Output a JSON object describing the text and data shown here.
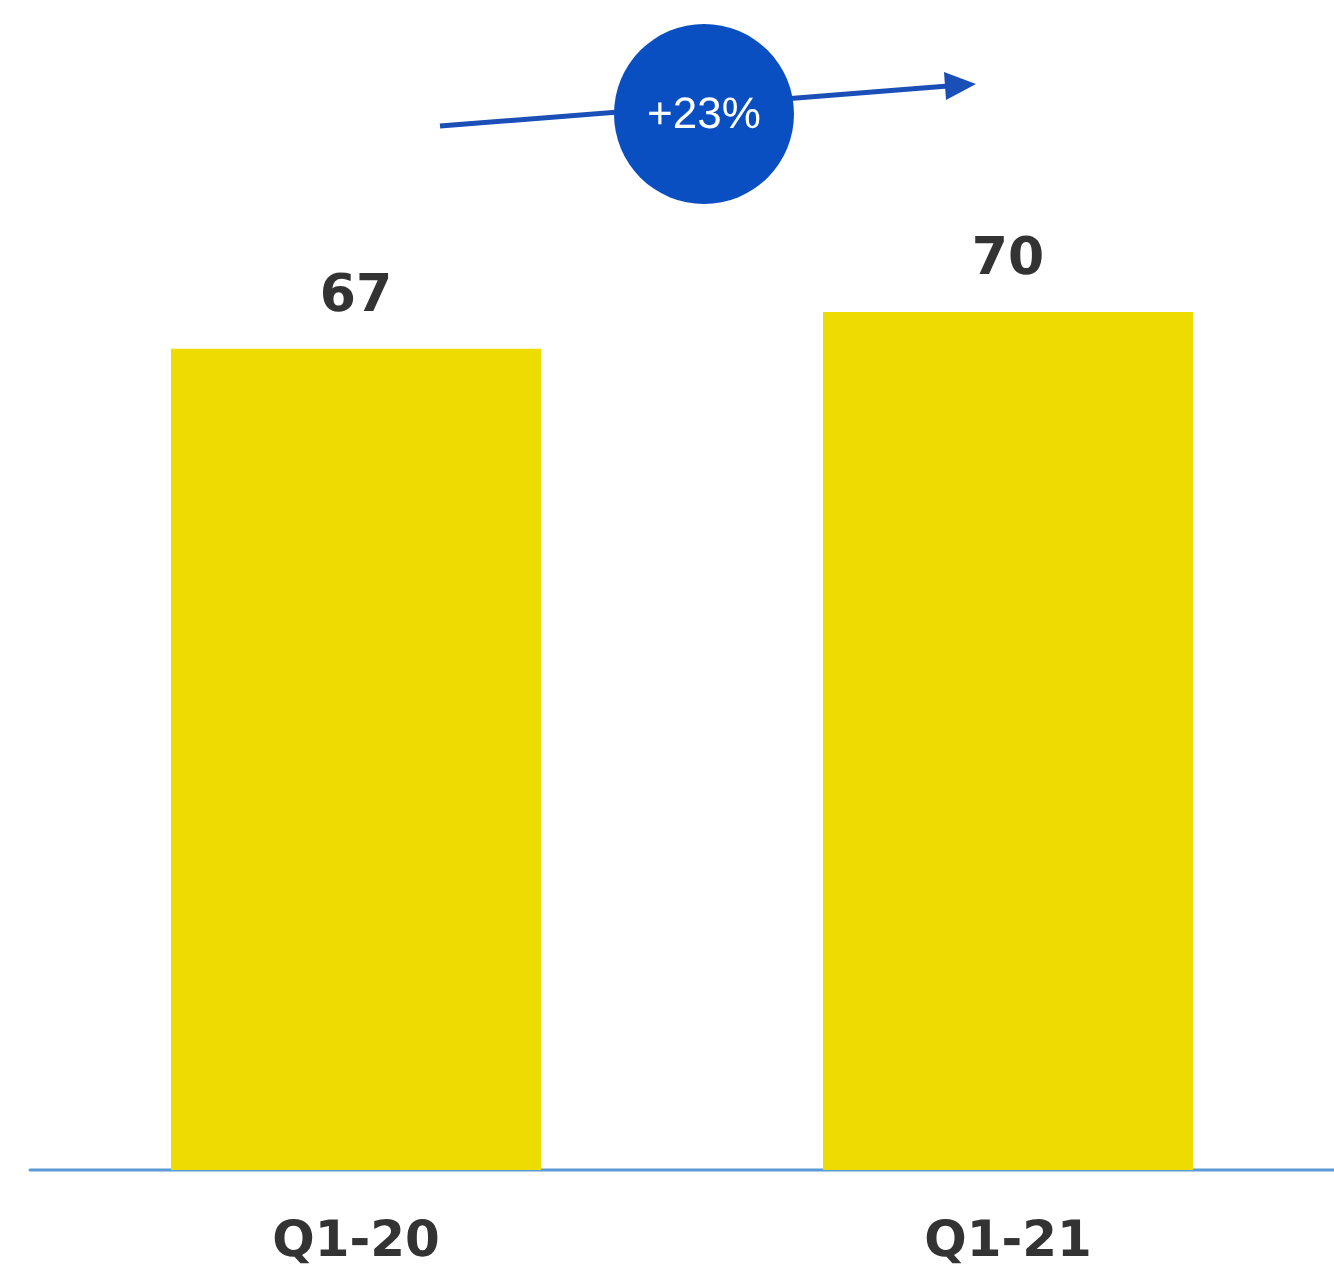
{
  "chart_data": {
    "type": "bar",
    "categories": [
      "Q1-20",
      "Q1-21"
    ],
    "values": [
      67,
      70
    ],
    "color": "#eedc00",
    "data_labels": true,
    "annotations": [
      "+23%"
    ]
  }
}
